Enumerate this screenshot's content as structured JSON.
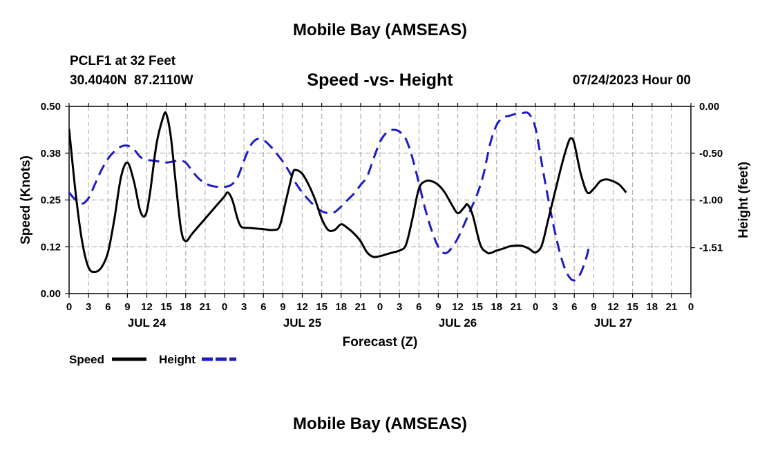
{
  "page": {
    "title": "Mobile Bay (AMSEAS)",
    "station": "PCLF1 at 32 Feet",
    "coords": "30.4040N  87.2110W",
    "subtitle": "Speed -vs- Height",
    "datetime": "07/24/2023 Hour 00",
    "footer_title": "Mobile Bay (AMSEAS)"
  },
  "chart_data": {
    "type": "line",
    "title": "Speed -vs- Height",
    "xlabel": "Forecast (Z)",
    "ylabel_left": "Speed (Knots)",
    "ylabel_right": "Height (feet)",
    "x_range_hours": [
      0,
      96
    ],
    "x_tick_step_hours": 3,
    "x_tick_labels": [
      "0",
      "3",
      "6",
      "9",
      "12",
      "15",
      "18",
      "21",
      "0",
      "3",
      "6",
      "9",
      "12",
      "15",
      "18",
      "21",
      "0",
      "3",
      "6",
      "9",
      "12",
      "15",
      "18",
      "21",
      "0",
      "3",
      "6",
      "9",
      "12",
      "15",
      "18",
      "21",
      "0"
    ],
    "day_labels": [
      {
        "label": "JUL 24",
        "hour": 12
      },
      {
        "label": "JUL 25",
        "hour": 36
      },
      {
        "label": "JUL 26",
        "hour": 60
      },
      {
        "label": "JUL 27",
        "hour": 84
      }
    ],
    "y_left": {
      "range": [
        0,
        0.5
      ],
      "ticks": [
        0.0,
        0.125,
        0.25,
        0.375,
        0.5
      ],
      "tick_labels": [
        "0.00",
        "0.12",
        "0.25",
        "0.38",
        "0.50"
      ]
    },
    "y_right": {
      "range": [
        -2.0,
        0.0
      ],
      "ticks": [
        0.0,
        -0.5,
        -1.0,
        -1.51
      ],
      "tick_labels": [
        "0.00",
        "-0.50",
        "-1.00",
        "-1.51"
      ]
    },
    "grid": true,
    "legend": [
      "Speed",
      "Height"
    ],
    "series": [
      {
        "name": "Speed",
        "axis": "left",
        "color": "#000000",
        "style": "solid",
        "points": [
          [
            0,
            0.44
          ],
          [
            1,
            0.27
          ],
          [
            2,
            0.14
          ],
          [
            3,
            0.07
          ],
          [
            4,
            0.058
          ],
          [
            5,
            0.07
          ],
          [
            6,
            0.11
          ],
          [
            7,
            0.2
          ],
          [
            8,
            0.31
          ],
          [
            9,
            0.35
          ],
          [
            10,
            0.3
          ],
          [
            11,
            0.22
          ],
          [
            11.8,
            0.21
          ],
          [
            12.5,
            0.27
          ],
          [
            13.5,
            0.4
          ],
          [
            14.5,
            0.47
          ],
          [
            15,
            0.48
          ],
          [
            15.7,
            0.42
          ],
          [
            16.5,
            0.29
          ],
          [
            17.3,
            0.17
          ],
          [
            18,
            0.14
          ],
          [
            19,
            0.16
          ],
          [
            20,
            0.18
          ],
          [
            21,
            0.2
          ],
          [
            22,
            0.22
          ],
          [
            23,
            0.24
          ],
          [
            24,
            0.26
          ],
          [
            24.5,
            0.27
          ],
          [
            25.2,
            0.25
          ],
          [
            26,
            0.2
          ],
          [
            26.5,
            0.18
          ],
          [
            27,
            0.176
          ],
          [
            28,
            0.175
          ],
          [
            30,
            0.172
          ],
          [
            31.5,
            0.17
          ],
          [
            32.5,
            0.18
          ],
          [
            33.5,
            0.25
          ],
          [
            34.5,
            0.32
          ],
          [
            35,
            0.33
          ],
          [
            36,
            0.32
          ],
          [
            37,
            0.29
          ],
          [
            38,
            0.25
          ],
          [
            39,
            0.2
          ],
          [
            40,
            0.17
          ],
          [
            41,
            0.17
          ],
          [
            42,
            0.185
          ],
          [
            43,
            0.175
          ],
          [
            44,
            0.16
          ],
          [
            45,
            0.14
          ],
          [
            46,
            0.11
          ],
          [
            47,
            0.098
          ],
          [
            48,
            0.1
          ],
          [
            49,
            0.105
          ],
          [
            50,
            0.11
          ],
          [
            51,
            0.115
          ],
          [
            52,
            0.13
          ],
          [
            53,
            0.2
          ],
          [
            54,
            0.28
          ],
          [
            55,
            0.3
          ],
          [
            56,
            0.3
          ],
          [
            57,
            0.29
          ],
          [
            58,
            0.27
          ],
          [
            59,
            0.24
          ],
          [
            60,
            0.215
          ],
          [
            61,
            0.23
          ],
          [
            61.5,
            0.238
          ],
          [
            62.3,
            0.21
          ],
          [
            63.5,
            0.13
          ],
          [
            64.5,
            0.11
          ],
          [
            65,
            0.108
          ],
          [
            66,
            0.115
          ],
          [
            67,
            0.12
          ],
          [
            68,
            0.126
          ],
          [
            69,
            0.128
          ],
          [
            70,
            0.127
          ],
          [
            71,
            0.12
          ],
          [
            72,
            0.11
          ],
          [
            73,
            0.13
          ],
          [
            74,
            0.2
          ],
          [
            75,
            0.27
          ],
          [
            76,
            0.34
          ],
          [
            77,
            0.4
          ],
          [
            77.5,
            0.415
          ],
          [
            78,
            0.4
          ],
          [
            79,
            0.32
          ],
          [
            80,
            0.27
          ],
          [
            81,
            0.28
          ],
          [
            82,
            0.3
          ],
          [
            83,
            0.305
          ],
          [
            84,
            0.3
          ],
          [
            85,
            0.29
          ],
          [
            86,
            0.27
          ]
        ]
      },
      {
        "name": "Height",
        "axis": "right",
        "color": "#1a1acc",
        "style": "dashed",
        "points": [
          [
            0,
            -0.92
          ],
          [
            1,
            -1.0
          ],
          [
            2,
            -1.04
          ],
          [
            3,
            -0.98
          ],
          [
            4,
            -0.83
          ],
          [
            5,
            -0.68
          ],
          [
            6,
            -0.56
          ],
          [
            7,
            -0.48
          ],
          [
            8,
            -0.43
          ],
          [
            9,
            -0.42
          ],
          [
            10,
            -0.46
          ],
          [
            11,
            -0.54
          ],
          [
            12,
            -0.57
          ],
          [
            13,
            -0.58
          ],
          [
            14,
            -0.59
          ],
          [
            15,
            -0.6
          ],
          [
            16,
            -0.59
          ],
          [
            17,
            -0.58
          ],
          [
            18,
            -0.6
          ],
          [
            19,
            -0.69
          ],
          [
            20,
            -0.77
          ],
          [
            21,
            -0.82
          ],
          [
            22,
            -0.85
          ],
          [
            23,
            -0.86
          ],
          [
            24,
            -0.86
          ],
          [
            25,
            -0.84
          ],
          [
            26,
            -0.76
          ],
          [
            27,
            -0.58
          ],
          [
            28,
            -0.42
          ],
          [
            29,
            -0.35
          ],
          [
            30,
            -0.36
          ],
          [
            31,
            -0.42
          ],
          [
            32,
            -0.5
          ],
          [
            33,
            -0.59
          ],
          [
            34,
            -0.7
          ],
          [
            35,
            -0.82
          ],
          [
            36,
            -0.92
          ],
          [
            37,
            -1.0
          ],
          [
            38,
            -1.07
          ],
          [
            39,
            -1.12
          ],
          [
            40,
            -1.14
          ],
          [
            41,
            -1.13
          ],
          [
            42,
            -1.07
          ],
          [
            43,
            -1.0
          ],
          [
            44,
            -0.93
          ],
          [
            45,
            -0.84
          ],
          [
            46,
            -0.75
          ],
          [
            47,
            -0.56
          ],
          [
            48,
            -0.38
          ],
          [
            49,
            -0.28
          ],
          [
            50,
            -0.25
          ],
          [
            51,
            -0.27
          ],
          [
            52,
            -0.35
          ],
          [
            53,
            -0.55
          ],
          [
            54,
            -0.82
          ],
          [
            55,
            -1.1
          ],
          [
            56,
            -1.33
          ],
          [
            57,
            -1.5
          ],
          [
            58,
            -1.57
          ],
          [
            59,
            -1.52
          ],
          [
            60,
            -1.41
          ],
          [
            61,
            -1.26
          ],
          [
            62,
            -1.1
          ],
          [
            63,
            -0.94
          ],
          [
            64,
            -0.72
          ],
          [
            65,
            -0.4
          ],
          [
            66,
            -0.2
          ],
          [
            67,
            -0.12
          ],
          [
            68,
            -0.1
          ],
          [
            69,
            -0.08
          ],
          [
            70,
            -0.07
          ],
          [
            71,
            -0.08
          ],
          [
            72,
            -0.23
          ],
          [
            73,
            -0.62
          ],
          [
            74,
            -1.0
          ],
          [
            75,
            -1.34
          ],
          [
            76,
            -1.62
          ],
          [
            77,
            -1.8
          ],
          [
            78,
            -1.86
          ],
          [
            79,
            -1.78
          ],
          [
            80,
            -1.58
          ],
          [
            80.3,
            -1.46
          ]
        ]
      }
    ]
  }
}
